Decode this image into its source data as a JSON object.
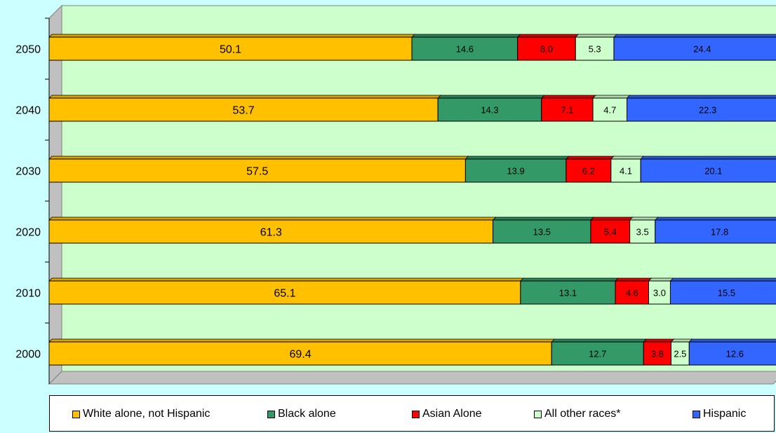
{
  "chart_data": {
    "type": "bar",
    "orientation": "horizontal",
    "stacked": true,
    "categories": [
      "2000",
      "2010",
      "2020",
      "2030",
      "2040",
      "2050"
    ],
    "series": [
      {
        "name": "White alone, not Hispanic",
        "color": "#ffc000",
        "values": [
          69.4,
          65.1,
          61.3,
          57.5,
          53.7,
          50.1
        ]
      },
      {
        "name": "Black alone",
        "color": "#339966",
        "values": [
          12.7,
          13.1,
          13.5,
          13.9,
          14.3,
          14.6
        ]
      },
      {
        "name": "Asian Alone",
        "color": "#ff0000",
        "values": [
          3.8,
          4.6,
          5.4,
          6.2,
          7.1,
          8.0
        ]
      },
      {
        "name": "All other races*",
        "color": "#ccffcc",
        "values": [
          2.5,
          3.0,
          3.5,
          4.1,
          4.7,
          5.3
        ]
      },
      {
        "name": "Hispanic",
        "color": "#3366ff",
        "values": [
          12.6,
          15.5,
          17.8,
          20.1,
          22.3,
          24.4
        ]
      }
    ],
    "xlim": [
      0,
      100
    ],
    "grid": false,
    "legend_position": "bottom",
    "plot_background": "#ccffcc",
    "page_background": "#ccffff"
  }
}
